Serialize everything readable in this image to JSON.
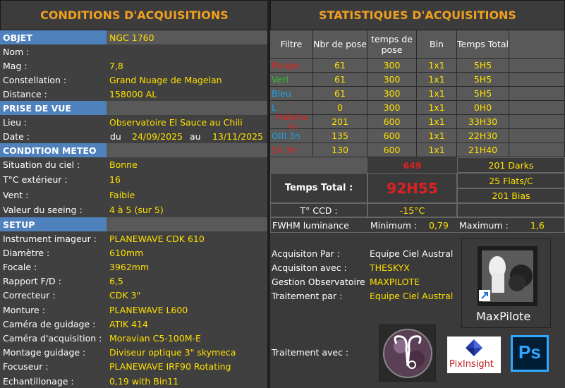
{
  "left": {
    "title": "CONDITIONS D'ACQUISITIONS",
    "objet": {
      "section": "OBJET",
      "value": "NGC 1760"
    },
    "rows_obj": [
      {
        "label": "Nom :",
        "value": ""
      },
      {
        "label": "Mag :",
        "value": "7,8"
      },
      {
        "label": "Constellation :",
        "value": "Grand Nuage de Magelan"
      },
      {
        "label": "Distance :",
        "value": "158000 AL"
      }
    ],
    "prise": {
      "section": "PRISE DE VUE"
    },
    "lieu": {
      "label": "Lieu :",
      "value": "Observatoire El Sauce au Chili"
    },
    "date": {
      "label": "Date :",
      "du": "du",
      "start": "24/09/2025",
      "au": "au",
      "end": "13/11/2025"
    },
    "meteo": {
      "section": "CONDITION METEO"
    },
    "rows_meteo": [
      {
        "label": "Situation du ciel  :",
        "value": "Bonne"
      },
      {
        "label": "T°C extérieur :",
        "value": "16"
      },
      {
        "label": "Vent :",
        "value": "Faible"
      },
      {
        "label": "Valeur du seeing  :",
        "value": "4 à 5  (sur 5)"
      }
    ],
    "setup": {
      "section": "SETUP"
    },
    "rows_setup": [
      {
        "label": "Instrument imageur :",
        "value": "PLANEWAVE CDK 610"
      },
      {
        "label": "Diamètre :",
        "value": "610mm"
      },
      {
        "label": "Focale :",
        "value": "3962mm"
      },
      {
        "label": "Rapport F/D :",
        "value": "6,5"
      },
      {
        "label": "Correcteur :",
        "value": "CDK 3\""
      },
      {
        "label": "Monture :",
        "value": "PLANEWAVE L600"
      },
      {
        "label": "Caméra de guidage :",
        "value": "ATIK 414"
      },
      {
        "label": "Caméra d'acquisition :",
        "value": "Moravian C5-100M-E"
      },
      {
        "label": "Montage guidage :",
        "value": "Diviseur optique 3\" skymeca"
      },
      {
        "label": "Focuseur :",
        "value": "PLANEWAVE IRF90 Rotating"
      },
      {
        "label": "Echantillonage :",
        "value": "0,19 with Bin11"
      }
    ]
  },
  "right": {
    "title": "STATISTIQUES D'ACQUISITIONS",
    "headers": [
      "Filtre",
      "Nbr de pose",
      "temps de pose",
      "Bin",
      "Temps Total"
    ],
    "rows": [
      {
        "filter": "Rouge",
        "color": "#e02020",
        "n": "61",
        "t": "300",
        "bin": "1x1",
        "total": "5H5"
      },
      {
        "filter": "Vert",
        "color": "#30c030",
        "n": "61",
        "t": "300",
        "bin": "1x1",
        "total": "5H5"
      },
      {
        "filter": "Bleu",
        "color": "#20a0e0",
        "n": "61",
        "t": "300",
        "bin": "1x1",
        "total": "5H5"
      },
      {
        "filter": "L",
        "color": "#20a0e0",
        "n": "0",
        "t": "300",
        "bin": "1x1",
        "total": "0H0"
      },
      {
        "filter": "Halpha 3n",
        "color": "#e02020",
        "n": "201",
        "t": "600",
        "bin": "1x1",
        "total": "33H30"
      },
      {
        "filter": "OIII 3n",
        "color": "#20a0e0",
        "n": "135",
        "t": "600",
        "bin": "1x1",
        "total": "22H30"
      },
      {
        "filter": "SII 3n",
        "color": "#e02020",
        "n": "130",
        "t": "600",
        "bin": "1x1",
        "total": "21H40"
      }
    ],
    "total_poses": "649",
    "total_label": "Temps Total :",
    "total_time": "92H55",
    "darks": "201 Darks",
    "flats": "25 Flats/C",
    "bias": "201 Bias",
    "ccd_label": "T° CCD :",
    "ccd_value": "-15°C",
    "fwhm_label": "FWHM luminance",
    "min_label": "Minimum :",
    "min_value": "0,79",
    "max_label": "Maximum :",
    "max_value": "1,6",
    "credits": [
      {
        "label": "Acquisiton Par :",
        "value": "Equipe Ciel Austral"
      },
      {
        "label": "Acquisiton avec :",
        "value": "THESKYX"
      },
      {
        "label": "Gestion Observatoire",
        "value": "MAXPILOTE"
      },
      {
        "label": "Traitement par :",
        "value": "Equipe Ciel Austral"
      }
    ],
    "treat_label": "Traitement avec :",
    "maxpilote_text": "MaxPilote",
    "pixinsight_text": "PixInsight",
    "ps_text": "Ps"
  }
}
